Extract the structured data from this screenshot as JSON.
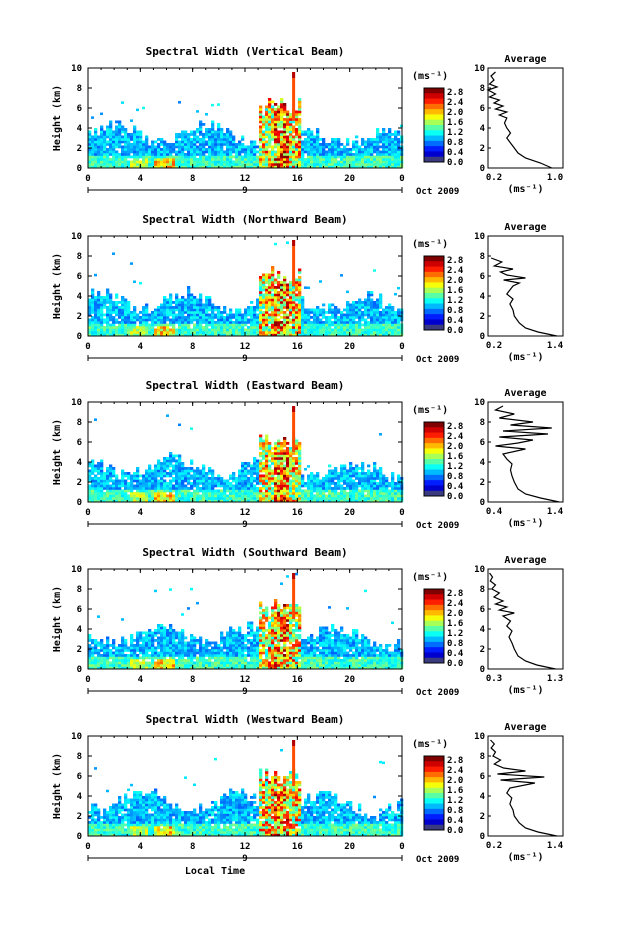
{
  "chart_data": [
    {
      "type": "heatmap",
      "title": "Spectral Width (Vertical Beam)",
      "ylabel": "Height (km)",
      "xlim": [
        0,
        24
      ],
      "ylim": [
        0,
        10
      ],
      "x_ticks": [
        "0",
        "4",
        "8",
        "12",
        "16",
        "20",
        "0"
      ],
      "y_ticks": [
        "0",
        "2",
        "4",
        "6",
        "8",
        "10"
      ],
      "date_marker": "9",
      "date_label": "Oct 2009",
      "colorbar": {
        "unit": "(ms⁻¹)",
        "ticks": [
          "2.8",
          "2.4",
          "2.0",
          "1.6",
          "1.2",
          "0.8",
          "0.4",
          "0.0"
        ],
        "range": [
          0,
          2.8
        ]
      },
      "profile": {
        "title": "Average",
        "xlabel": "(ms⁻¹)",
        "x_ticks": [
          "0.2",
          "1.0"
        ],
        "xlim": [
          0.2,
          1.2
        ],
        "y_ticks": [
          "0",
          "2",
          "4",
          "6",
          "8",
          "10"
        ],
        "points": [
          [
            1.05,
            0
          ],
          [
            0.9,
            0.5
          ],
          [
            0.7,
            1.0
          ],
          [
            0.6,
            1.5
          ],
          [
            0.55,
            2.0
          ],
          [
            0.5,
            2.5
          ],
          [
            0.45,
            3.0
          ],
          [
            0.5,
            3.5
          ],
          [
            0.45,
            4.0
          ],
          [
            0.42,
            4.5
          ],
          [
            0.45,
            5.0
          ],
          [
            0.35,
            5.3
          ],
          [
            0.45,
            5.6
          ],
          [
            0.3,
            5.9
          ],
          [
            0.4,
            6.2
          ],
          [
            0.28,
            6.5
          ],
          [
            0.35,
            6.8
          ],
          [
            0.22,
            7.1
          ],
          [
            0.3,
            7.4
          ],
          [
            0.2,
            7.8
          ],
          [
            0.32,
            8.1
          ],
          [
            0.22,
            8.4
          ],
          [
            0.28,
            8.8
          ],
          [
            0.24,
            9.2
          ],
          [
            0.3,
            9.6
          ]
        ]
      }
    },
    {
      "type": "heatmap",
      "title": "Spectral Width (Northward Beam)",
      "ylabel": "Height (km)",
      "xlim": [
        0,
        24
      ],
      "ylim": [
        0,
        10
      ],
      "x_ticks": [
        "0",
        "4",
        "8",
        "12",
        "16",
        "20",
        "0"
      ],
      "y_ticks": [
        "0",
        "2",
        "4",
        "6",
        "8",
        "10"
      ],
      "date_marker": "9",
      "date_label": "Oct 2009",
      "colorbar": {
        "unit": "(ms⁻¹)",
        "ticks": [
          "2.8",
          "2.4",
          "2.0",
          "1.6",
          "1.2",
          "0.8",
          "0.4",
          "0.0"
        ],
        "range": [
          0,
          2.8
        ]
      },
      "profile": {
        "title": "Average",
        "xlabel": "(ms⁻¹)",
        "x_ticks": [
          "0.2",
          "1.4"
        ],
        "xlim": [
          0.2,
          1.4
        ],
        "y_ticks": [
          "0",
          "2",
          "4",
          "6",
          "8",
          "10"
        ],
        "points": [
          [
            1.3,
            0
          ],
          [
            1.0,
            0.4
          ],
          [
            0.8,
            0.8
          ],
          [
            0.7,
            1.3
          ],
          [
            0.62,
            2.0
          ],
          [
            0.6,
            2.6
          ],
          [
            0.55,
            3.2
          ],
          [
            0.6,
            3.7
          ],
          [
            0.5,
            4.2
          ],
          [
            0.55,
            4.6
          ],
          [
            0.6,
            5.0
          ],
          [
            0.7,
            5.3
          ],
          [
            0.45,
            5.6
          ],
          [
            0.8,
            5.8
          ],
          [
            0.5,
            6.1
          ],
          [
            0.4,
            6.4
          ],
          [
            0.6,
            6.7
          ],
          [
            0.3,
            7.0
          ],
          [
            0.42,
            7.4
          ],
          [
            0.25,
            7.8
          ]
        ]
      }
    },
    {
      "type": "heatmap",
      "title": "Spectral Width (Eastward Beam)",
      "ylabel": "Height (km)",
      "xlim": [
        0,
        24
      ],
      "ylim": [
        0,
        10
      ],
      "x_ticks": [
        "0",
        "4",
        "8",
        "12",
        "16",
        "20",
        "0"
      ],
      "y_ticks": [
        "0",
        "2",
        "4",
        "6",
        "8",
        "10"
      ],
      "date_marker": "9",
      "date_label": "Oct 2009",
      "colorbar": {
        "unit": "(ms⁻¹)",
        "ticks": [
          "2.8",
          "2.4",
          "2.0",
          "1.6",
          "1.2",
          "0.8",
          "0.4",
          "0.0"
        ],
        "range": [
          0,
          2.8
        ]
      },
      "profile": {
        "title": "Average",
        "xlabel": "(ms⁻¹)",
        "x_ticks": [
          "0.4",
          "1.4"
        ],
        "xlim": [
          0.4,
          1.4
        ],
        "y_ticks": [
          "0",
          "2",
          "4",
          "6",
          "8",
          "10"
        ],
        "points": [
          [
            1.35,
            0
          ],
          [
            1.1,
            0.4
          ],
          [
            0.9,
            0.8
          ],
          [
            0.8,
            1.3
          ],
          [
            0.75,
            2.0
          ],
          [
            0.72,
            2.6
          ],
          [
            0.7,
            3.2
          ],
          [
            0.72,
            3.8
          ],
          [
            0.65,
            4.3
          ],
          [
            0.6,
            4.8
          ],
          [
            0.9,
            5.3
          ],
          [
            0.5,
            5.6
          ],
          [
            0.8,
            5.9
          ],
          [
            1.0,
            6.2
          ],
          [
            0.55,
            6.5
          ],
          [
            1.2,
            6.8
          ],
          [
            0.6,
            7.1
          ],
          [
            1.25,
            7.4
          ],
          [
            0.7,
            7.7
          ],
          [
            1.0,
            8.0
          ],
          [
            0.55,
            8.4
          ],
          [
            0.75,
            8.8
          ],
          [
            0.5,
            9.2
          ],
          [
            0.6,
            9.6
          ]
        ]
      }
    },
    {
      "type": "heatmap",
      "title": "Spectral Width (Southward Beam)",
      "ylabel": "Height (km)",
      "xlim": [
        0,
        24
      ],
      "ylim": [
        0,
        10
      ],
      "x_ticks": [
        "0",
        "4",
        "8",
        "12",
        "16",
        "20",
        "0"
      ],
      "y_ticks": [
        "0",
        "2",
        "4",
        "6",
        "8",
        "10"
      ],
      "date_marker": "9",
      "date_label": "Oct 2009",
      "colorbar": {
        "unit": "(ms⁻¹)",
        "ticks": [
          "2.8",
          "2.4",
          "2.0",
          "1.6",
          "1.2",
          "0.8",
          "0.4",
          "0.0"
        ],
        "range": [
          0,
          2.8
        ]
      },
      "profile": {
        "title": "Average",
        "xlabel": "(ms⁻¹)",
        "x_ticks": [
          "0.3",
          "1.3"
        ],
        "xlim": [
          0.3,
          1.3
        ],
        "y_ticks": [
          "0",
          "2",
          "4",
          "6",
          "8",
          "10"
        ],
        "points": [
          [
            1.2,
            0
          ],
          [
            0.95,
            0.4
          ],
          [
            0.8,
            0.8
          ],
          [
            0.7,
            1.3
          ],
          [
            0.65,
            2.0
          ],
          [
            0.62,
            2.6
          ],
          [
            0.58,
            3.2
          ],
          [
            0.62,
            3.8
          ],
          [
            0.55,
            4.3
          ],
          [
            0.6,
            4.8
          ],
          [
            0.5,
            5.3
          ],
          [
            0.65,
            5.6
          ],
          [
            0.45,
            5.9
          ],
          [
            0.55,
            6.2
          ],
          [
            0.4,
            6.5
          ],
          [
            0.5,
            6.8
          ],
          [
            0.38,
            7.2
          ],
          [
            0.45,
            7.6
          ],
          [
            0.35,
            8.0
          ],
          [
            0.4,
            8.4
          ],
          [
            0.33,
            8.8
          ],
          [
            0.36,
            9.2
          ],
          [
            0.32,
            9.6
          ]
        ]
      }
    },
    {
      "type": "heatmap",
      "title": "Spectral Width (Westward Beam)",
      "ylabel": "Height (km)",
      "xlabel": "Local Time",
      "xlim": [
        0,
        24
      ],
      "ylim": [
        0,
        10
      ],
      "x_ticks": [
        "0",
        "4",
        "8",
        "12",
        "16",
        "20",
        "0"
      ],
      "y_ticks": [
        "0",
        "2",
        "4",
        "6",
        "8",
        "10"
      ],
      "date_marker": "9",
      "date_label": "Oct 2009",
      "colorbar": {
        "unit": "(ms⁻¹)",
        "ticks": [
          "2.8",
          "2.4",
          "2.0",
          "1.6",
          "1.2",
          "0.8",
          "0.4",
          "0.0"
        ],
        "range": [
          0,
          2.8
        ]
      },
      "profile": {
        "title": "Average",
        "xlabel": "(ms⁻¹)",
        "x_ticks": [
          "0.2",
          "1.4"
        ],
        "xlim": [
          0.2,
          1.4
        ],
        "y_ticks": [
          "0",
          "2",
          "4",
          "6",
          "8",
          "10"
        ],
        "points": [
          [
            1.3,
            0
          ],
          [
            1.0,
            0.4
          ],
          [
            0.8,
            0.8
          ],
          [
            0.7,
            1.3
          ],
          [
            0.62,
            2.0
          ],
          [
            0.6,
            2.6
          ],
          [
            0.55,
            3.2
          ],
          [
            0.58,
            3.8
          ],
          [
            0.5,
            4.3
          ],
          [
            0.55,
            4.8
          ],
          [
            0.95,
            5.3
          ],
          [
            0.4,
            5.6
          ],
          [
            1.1,
            5.9
          ],
          [
            0.35,
            6.2
          ],
          [
            0.8,
            6.5
          ],
          [
            0.45,
            6.8
          ],
          [
            0.3,
            7.2
          ],
          [
            0.4,
            7.6
          ],
          [
            0.28,
            8.0
          ],
          [
            0.32,
            8.4
          ],
          [
            0.25,
            8.8
          ],
          [
            0.3,
            9.2
          ],
          [
            0.24,
            9.6
          ]
        ]
      }
    }
  ]
}
